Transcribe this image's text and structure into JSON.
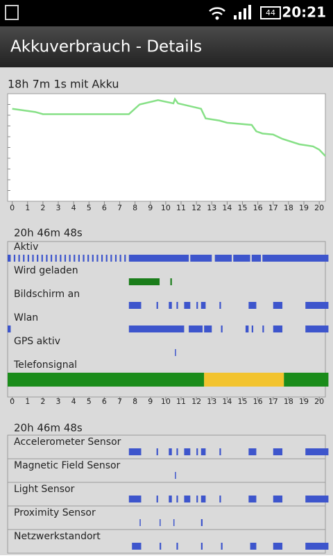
{
  "status_bar": {
    "battery": "44",
    "time": "20:21"
  },
  "header": {
    "title": "Akkuverbrauch - Details"
  },
  "battery_chart": {
    "type": "line",
    "title": "18h 7m 1s mit Akku",
    "color": "#86e086",
    "x": [
      0,
      1.5,
      2,
      7.6,
      8.3,
      9.5,
      10.5,
      10.6,
      10.8,
      12.3,
      12.6,
      13.5,
      14,
      15.6,
      15.9,
      16.3,
      17,
      17.6,
      18.7,
      19.6,
      20,
      20.4
    ],
    "values": [
      86,
      83,
      81,
      81,
      90,
      94,
      91,
      95,
      91,
      86,
      77,
      75,
      73,
      71,
      65,
      63,
      62,
      58,
      53,
      51,
      48,
      42
    ],
    "xlim": [
      -0.3,
      20.4
    ],
    "ylim": [
      0,
      100
    ],
    "xticks": [
      0,
      1,
      2,
      3,
      4,
      5,
      6,
      7,
      8,
      9,
      10,
      11,
      12,
      13,
      14,
      15,
      16,
      17,
      18,
      19,
      20
    ]
  },
  "timeline": {
    "title": "20h 46m 48s",
    "color": "#3d55cc",
    "rows": [
      {
        "label": "Aktiv",
        "segments": [
          [
            -0.3,
            -0.1
          ],
          [
            0.1,
            0.2
          ],
          [
            0.4,
            0.5
          ],
          [
            0.7,
            0.8
          ],
          [
            1,
            1.1
          ],
          [
            1.3,
            1.4
          ],
          [
            1.6,
            1.7
          ],
          [
            1.9,
            2
          ],
          [
            2.2,
            2.3
          ],
          [
            2.5,
            2.6
          ],
          [
            2.8,
            2.9
          ],
          [
            3.1,
            3.2
          ],
          [
            3.4,
            3.5
          ],
          [
            3.7,
            3.8
          ],
          [
            4,
            4.1
          ],
          [
            4.3,
            4.4
          ],
          [
            4.6,
            4.7
          ],
          [
            4.9,
            5
          ],
          [
            5.2,
            5.3
          ],
          [
            5.5,
            5.6
          ],
          [
            5.8,
            5.9
          ],
          [
            6.1,
            6.2
          ],
          [
            6.4,
            6.5
          ],
          [
            6.7,
            6.8
          ],
          [
            7,
            7.1
          ],
          [
            7.3,
            7.4
          ],
          [
            7.6,
            11.5
          ],
          [
            11.6,
            13
          ],
          [
            13.2,
            14.3
          ],
          [
            14.4,
            15.5
          ],
          [
            15.6,
            16.2
          ],
          [
            16.3,
            20.6
          ]
        ]
      },
      {
        "label": "Wird geladen",
        "color": "#1a7d1a",
        "segments": [
          [
            7.6,
            9.6
          ],
          [
            10.3,
            10.4
          ]
        ]
      },
      {
        "label": "Bildschirm an",
        "segments": [
          [
            7.6,
            8.4
          ],
          [
            9.4,
            9.5
          ],
          [
            10.2,
            10.4
          ],
          [
            10.7,
            10.8
          ],
          [
            11.2,
            11.6
          ],
          [
            12,
            12.1
          ],
          [
            12.3,
            12.6
          ],
          [
            13.5,
            13.6
          ],
          [
            15.4,
            15.9
          ],
          [
            17,
            17.6
          ],
          [
            19.1,
            20.6
          ]
        ]
      },
      {
        "label": "Wlan",
        "segments": [
          [
            -0.3,
            -0.1
          ],
          [
            7.6,
            11.2
          ],
          [
            11.5,
            12.4
          ],
          [
            12.5,
            13
          ],
          [
            13.6,
            13.7
          ],
          [
            15.2,
            15.4
          ],
          [
            15.6,
            15.7
          ],
          [
            16.3,
            16.4
          ],
          [
            17,
            17.6
          ],
          [
            19.1,
            20.6
          ]
        ]
      },
      {
        "label": "GPS aktiv",
        "segments": [
          [
            10.6,
            10.65
          ]
        ]
      },
      {
        "label": "Telefonsignal",
        "tall": true,
        "colors": [
          "#1a8c1a",
          "#f2c32e",
          "#1a8c1a"
        ],
        "segments": [
          [
            -0.3,
            12.5
          ],
          [
            12.5,
            17.7
          ],
          [
            17.7,
            20.6
          ]
        ]
      }
    ],
    "xlim": [
      -0.3,
      20.4
    ],
    "xticks": [
      0,
      1,
      2,
      3,
      4,
      5,
      6,
      7,
      8,
      9,
      10,
      11,
      12,
      13,
      14,
      15,
      16,
      17,
      18,
      19,
      20
    ]
  },
  "sensors": {
    "title": "20h 46m 48s",
    "color": "#3d55cc",
    "xlim": [
      -0.3,
      20.4
    ],
    "rows": [
      {
        "label": "Accelerometer Sensor",
        "segments": [
          [
            7.6,
            8.4
          ],
          [
            9.4,
            9.5
          ],
          [
            10.2,
            10.4
          ],
          [
            10.7,
            10.8
          ],
          [
            11.2,
            11.6
          ],
          [
            12,
            12.1
          ],
          [
            12.3,
            12.6
          ],
          [
            13.5,
            13.6
          ],
          [
            15.4,
            15.9
          ],
          [
            17,
            17.6
          ],
          [
            19.1,
            20.6
          ]
        ]
      },
      {
        "label": "Magnetic Field Sensor",
        "segments": [
          [
            10.6,
            10.65
          ]
        ]
      },
      {
        "label": "Light Sensor",
        "segments": [
          [
            7.6,
            8.4
          ],
          [
            9.4,
            9.5
          ],
          [
            10.2,
            10.4
          ],
          [
            10.7,
            10.8
          ],
          [
            11.2,
            11.6
          ],
          [
            12,
            12.1
          ],
          [
            12.3,
            12.6
          ],
          [
            13.5,
            13.6
          ],
          [
            15.4,
            15.9
          ],
          [
            17,
            17.6
          ],
          [
            19.1,
            20.6
          ]
        ]
      },
      {
        "label": "Proximity Sensor",
        "segments": [
          [
            8.3,
            8.35
          ],
          [
            9.6,
            9.65
          ],
          [
            10.5,
            10.55
          ],
          [
            12.3,
            12.4
          ]
        ]
      },
      {
        "label": "Netzwerkstandort",
        "segments": [
          [
            7.8,
            8.4
          ],
          [
            9.6,
            9.7
          ],
          [
            10.7,
            10.8
          ],
          [
            12.3,
            12.4
          ],
          [
            13.6,
            13.7
          ],
          [
            15.5,
            15.9
          ],
          [
            17,
            17.6
          ],
          [
            19.1,
            20.6
          ]
        ]
      }
    ]
  }
}
